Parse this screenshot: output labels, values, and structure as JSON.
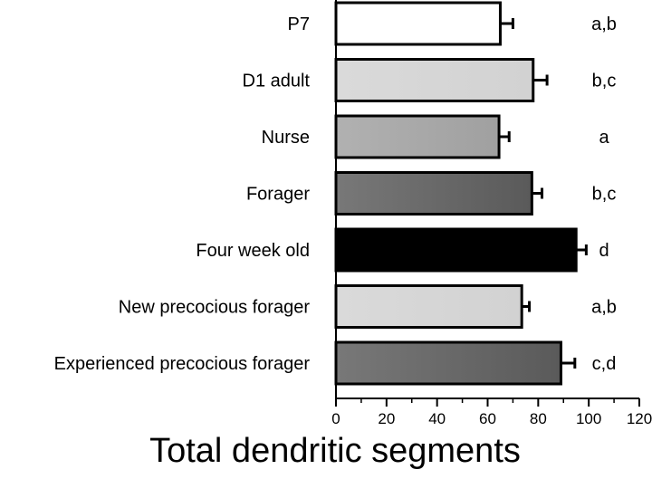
{
  "chart_data": {
    "type": "bar",
    "orientation": "horizontal",
    "categories": [
      "P7",
      "D1 adult",
      "Nurse",
      "Forager",
      "Four week old",
      "New precocious forager",
      "Experienced precocious forager"
    ],
    "values": [
      65,
      78,
      64.5,
      77.5,
      95,
      73.5,
      89
    ],
    "errors": [
      5,
      5.5,
      4,
      4,
      4,
      3,
      5.5
    ],
    "significance": [
      "a,b",
      "b,c",
      "a",
      "b,c",
      "d",
      "a,b",
      "c,d"
    ],
    "bar_colors": [
      "#ffffff",
      "#d2d2d2",
      "#a0a0a0",
      "#5a5a5a",
      "#000000",
      "#d2d2d2",
      "#5a5a5a"
    ],
    "gradient_fill": true,
    "title": "",
    "xlabel": "Total dendritic segments",
    "ylabel": "",
    "xlim": [
      0,
      120
    ],
    "xticks": [
      0,
      20,
      40,
      60,
      80,
      100,
      120
    ],
    "minor_tick_step": 10,
    "grid": false
  }
}
